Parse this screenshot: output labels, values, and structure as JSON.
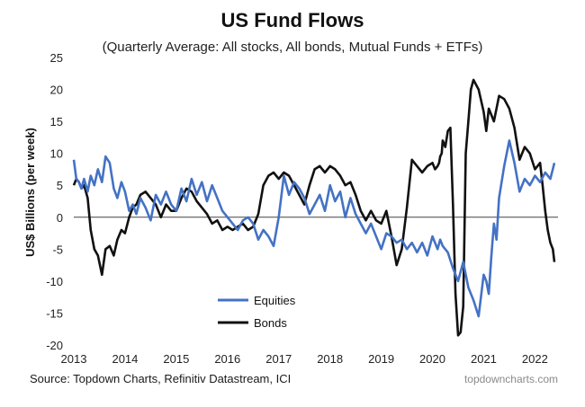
{
  "chart_data": {
    "type": "line",
    "title": "US Fund Flows",
    "subtitle": "(Quarterly Average: All stocks, All bonds, Mutual Funds + ETFs)",
    "ylabel": "US$ Billions  (per week)",
    "xlabel": "",
    "xlim": [
      2013,
      2022.45
    ],
    "ylim": [
      -20,
      25
    ],
    "x_ticks": [
      "2013",
      "2014",
      "2015",
      "2016",
      "2017",
      "2018",
      "2019",
      "2020",
      "2021",
      "2022"
    ],
    "y_ticks": [
      "25",
      "20",
      "15",
      "10",
      "5",
      "0",
      "-5",
      "-10",
      "-15",
      "-20"
    ],
    "grid": false,
    "legend_position": "bottom-center",
    "series": [
      {
        "name": "Equities",
        "color": "#4472c4",
        "x": [
          2013.0,
          2013.05,
          2013.1,
          2013.15,
          2013.2,
          2013.27,
          2013.33,
          2013.4,
          2013.47,
          2013.55,
          2013.62,
          2013.7,
          2013.78,
          2013.85,
          2013.93,
          2014.0,
          2014.08,
          2014.15,
          2014.22,
          2014.3,
          2014.4,
          2014.5,
          2014.6,
          2014.7,
          2014.8,
          2014.9,
          2015.0,
          2015.1,
          2015.2,
          2015.3,
          2015.4,
          2015.5,
          2015.6,
          2015.7,
          2015.8,
          2015.9,
          2016.0,
          2016.1,
          2016.2,
          2016.3,
          2016.4,
          2016.5,
          2016.6,
          2016.7,
          2016.8,
          2016.9,
          2017.0,
          2017.1,
          2017.2,
          2017.3,
          2017.4,
          2017.5,
          2017.6,
          2017.7,
          2017.8,
          2017.9,
          2018.0,
          2018.1,
          2018.2,
          2018.3,
          2018.4,
          2018.5,
          2018.6,
          2018.7,
          2018.8,
          2018.9,
          2019.0,
          2019.1,
          2019.2,
          2019.3,
          2019.4,
          2019.5,
          2019.6,
          2019.7,
          2019.8,
          2019.9,
          2020.0,
          2020.1,
          2020.15,
          2020.2,
          2020.3,
          2020.4,
          2020.5,
          2020.6,
          2020.7,
          2020.8,
          2020.9,
          2021.0,
          2021.05,
          2021.1,
          2021.15,
          2021.2,
          2021.25,
          2021.3,
          2021.4,
          2021.5,
          2021.6,
          2021.7,
          2021.8,
          2021.9,
          2022.0,
          2022.1,
          2022.2,
          2022.3,
          2022.38
        ],
        "values": [
          9.0,
          6.0,
          5.5,
          4.5,
          6.0,
          4.0,
          6.5,
          5.0,
          7.5,
          5.5,
          9.5,
          8.5,
          4.5,
          3.0,
          5.5,
          4.0,
          1.0,
          2.0,
          0.5,
          3.0,
          1.5,
          -0.5,
          3.5,
          2.0,
          4.0,
          2.0,
          1.0,
          4.5,
          2.5,
          6.0,
          3.5,
          5.5,
          2.5,
          5.0,
          3.0,
          1.0,
          0.0,
          -1.0,
          -2.0,
          -0.5,
          0.0,
          -1.0,
          -3.5,
          -2.0,
          -3.0,
          -4.5,
          0.0,
          6.5,
          3.5,
          5.5,
          4.5,
          3.0,
          0.5,
          2.0,
          3.5,
          1.0,
          5.0,
          2.5,
          4.0,
          0.0,
          3.0,
          0.5,
          -1.0,
          -2.5,
          -1.0,
          -3.0,
          -5.0,
          -2.5,
          -3.0,
          -4.0,
          -3.5,
          -5.0,
          -4.0,
          -5.5,
          -4.0,
          -6.0,
          -3.0,
          -5.0,
          -3.5,
          -4.5,
          -5.5,
          -8.0,
          -10.0,
          -7.0,
          -11.0,
          -13.0,
          -15.5,
          -9.0,
          -10.0,
          -12.0,
          -6.0,
          -1.0,
          -3.5,
          3.0,
          8.0,
          12.0,
          8.5,
          4.0,
          6.0,
          5.0,
          6.5,
          5.5,
          7.0,
          6.0,
          8.5
        ]
      },
      {
        "name": "Bonds",
        "color": "#111111",
        "x": [
          2013.0,
          2013.05,
          2013.1,
          2013.15,
          2013.2,
          2013.27,
          2013.33,
          2013.4,
          2013.47,
          2013.55,
          2013.62,
          2013.7,
          2013.78,
          2013.85,
          2013.93,
          2014.0,
          2014.08,
          2014.15,
          2014.22,
          2014.3,
          2014.4,
          2014.5,
          2014.6,
          2014.7,
          2014.8,
          2014.9,
          2015.0,
          2015.1,
          2015.2,
          2015.3,
          2015.4,
          2015.5,
          2015.6,
          2015.7,
          2015.8,
          2015.9,
          2016.0,
          2016.1,
          2016.2,
          2016.3,
          2016.4,
          2016.5,
          2016.6,
          2016.7,
          2016.8,
          2016.9,
          2017.0,
          2017.1,
          2017.2,
          2017.3,
          2017.4,
          2017.5,
          2017.6,
          2017.7,
          2017.8,
          2017.9,
          2018.0,
          2018.1,
          2018.2,
          2018.3,
          2018.4,
          2018.5,
          2018.6,
          2018.7,
          2018.8,
          2018.9,
          2019.0,
          2019.1,
          2019.2,
          2019.3,
          2019.4,
          2019.5,
          2019.6,
          2019.7,
          2019.8,
          2019.9,
          2020.0,
          2020.05,
          2020.1,
          2020.13,
          2020.15,
          2020.18,
          2020.2,
          2020.25,
          2020.3,
          2020.35,
          2020.4,
          2020.45,
          2020.5,
          2020.55,
          2020.6,
          2020.65,
          2020.7,
          2020.75,
          2020.8,
          2020.9,
          2021.0,
          2021.05,
          2021.1,
          2021.15,
          2021.2,
          2021.3,
          2021.4,
          2021.5,
          2021.6,
          2021.7,
          2021.8,
          2021.9,
          2022.0,
          2022.05,
          2022.1,
          2022.15,
          2022.2,
          2022.25,
          2022.3,
          2022.35,
          2022.38
        ],
        "values": [
          5.0,
          6.0,
          5.5,
          4.5,
          5.0,
          3.0,
          -2.0,
          -5.0,
          -6.0,
          -9.0,
          -5.0,
          -4.5,
          -6.0,
          -3.5,
          -2.0,
          -2.5,
          0.0,
          1.5,
          2.0,
          3.5,
          4.0,
          3.0,
          2.0,
          0.0,
          2.0,
          1.0,
          1.0,
          3.0,
          4.5,
          4.0,
          2.5,
          1.5,
          0.5,
          -1.0,
          -0.5,
          -2.0,
          -1.5,
          -2.0,
          -1.5,
          -1.0,
          -2.0,
          -1.5,
          0.5,
          5.0,
          6.5,
          7.0,
          6.0,
          7.0,
          6.5,
          5.0,
          3.5,
          2.0,
          5.0,
          7.5,
          8.0,
          7.0,
          8.0,
          7.5,
          6.5,
          5.0,
          5.5,
          3.5,
          1.0,
          -0.5,
          1.0,
          -0.5,
          -1.0,
          1.0,
          -3.0,
          -7.5,
          -5.0,
          1.5,
          9.0,
          8.0,
          7.0,
          8.0,
          8.5,
          7.5,
          8.0,
          8.5,
          9.5,
          10.0,
          12.0,
          11.0,
          13.5,
          14.0,
          2.0,
          -12.0,
          -18.5,
          -18.0,
          -14.0,
          10.0,
          15.0,
          20.0,
          21.5,
          20.0,
          16.5,
          13.5,
          17.0,
          16.0,
          15.0,
          19.0,
          18.5,
          17.0,
          14.0,
          9.0,
          11.0,
          10.0,
          7.5,
          8.0,
          8.5,
          5.0,
          1.0,
          -2.0,
          -4.0,
          -5.0,
          -7.0
        ]
      }
    ]
  },
  "source": "Source: Topdown Charts, Refinitiv Datastream, ICI",
  "brand": "topdowncharts.com"
}
